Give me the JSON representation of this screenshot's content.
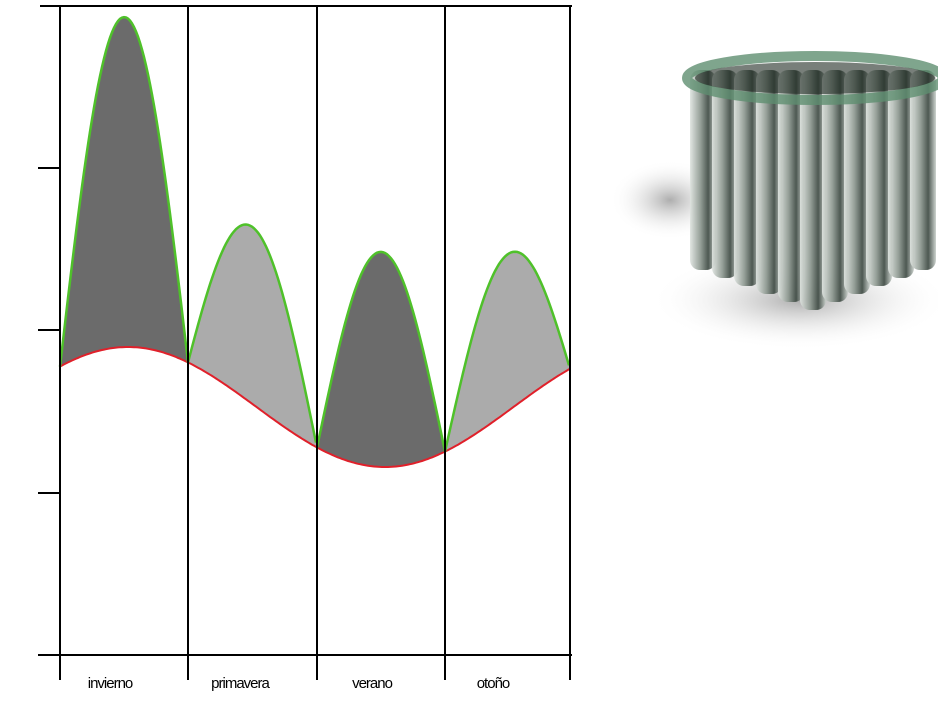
{
  "diagram": {
    "columns": [
      "invierno",
      "primavera",
      "verano",
      "otoño"
    ]
  }
}
